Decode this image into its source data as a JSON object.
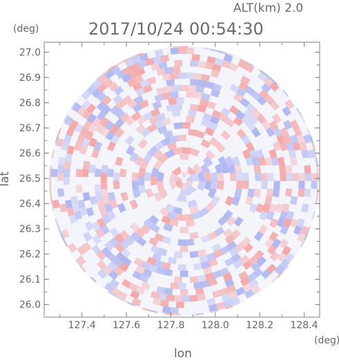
{
  "header": {
    "altitude": "ALT(km) 2.0",
    "timestamp": "2017/10/24 00:54:30"
  },
  "chart_data": {
    "type": "heatmap",
    "title": "2017/10/24 00:54:30",
    "subtitle": "ALT(km) 2.0",
    "xlabel": "lon",
    "ylabel": "lat",
    "x_unit": "(deg)",
    "y_unit": "(deg)",
    "xlim": [
      127.23,
      128.47
    ],
    "ylim": [
      25.95,
      27.04
    ],
    "x_ticks": [
      "127.4",
      "127.6",
      "127.8",
      "128.0",
      "128.2",
      "128.4"
    ],
    "x_tick_values": [
      127.4,
      127.6,
      127.8,
      128.0,
      128.2,
      128.4
    ],
    "y_ticks": [
      "26.0",
      "26.1",
      "26.2",
      "26.3",
      "26.4",
      "26.5",
      "26.6",
      "26.7",
      "26.8",
      "26.9",
      "27.0"
    ],
    "y_tick_values": [
      26.0,
      26.1,
      26.2,
      26.3,
      26.4,
      26.5,
      26.6,
      26.7,
      26.8,
      26.9,
      27.0
    ],
    "field_center": {
      "lon": 127.86,
      "lat": 26.49
    },
    "field_extent": {
      "lon": [
        127.23,
        128.47
      ],
      "lat": [
        25.96,
        27.03
      ]
    },
    "colors": {
      "positive": "#f4a3a3",
      "negative": "#aab2f0",
      "neutral": "#f4f4fb",
      "axis": "#808080",
      "text": "#666666"
    },
    "grid": false
  }
}
